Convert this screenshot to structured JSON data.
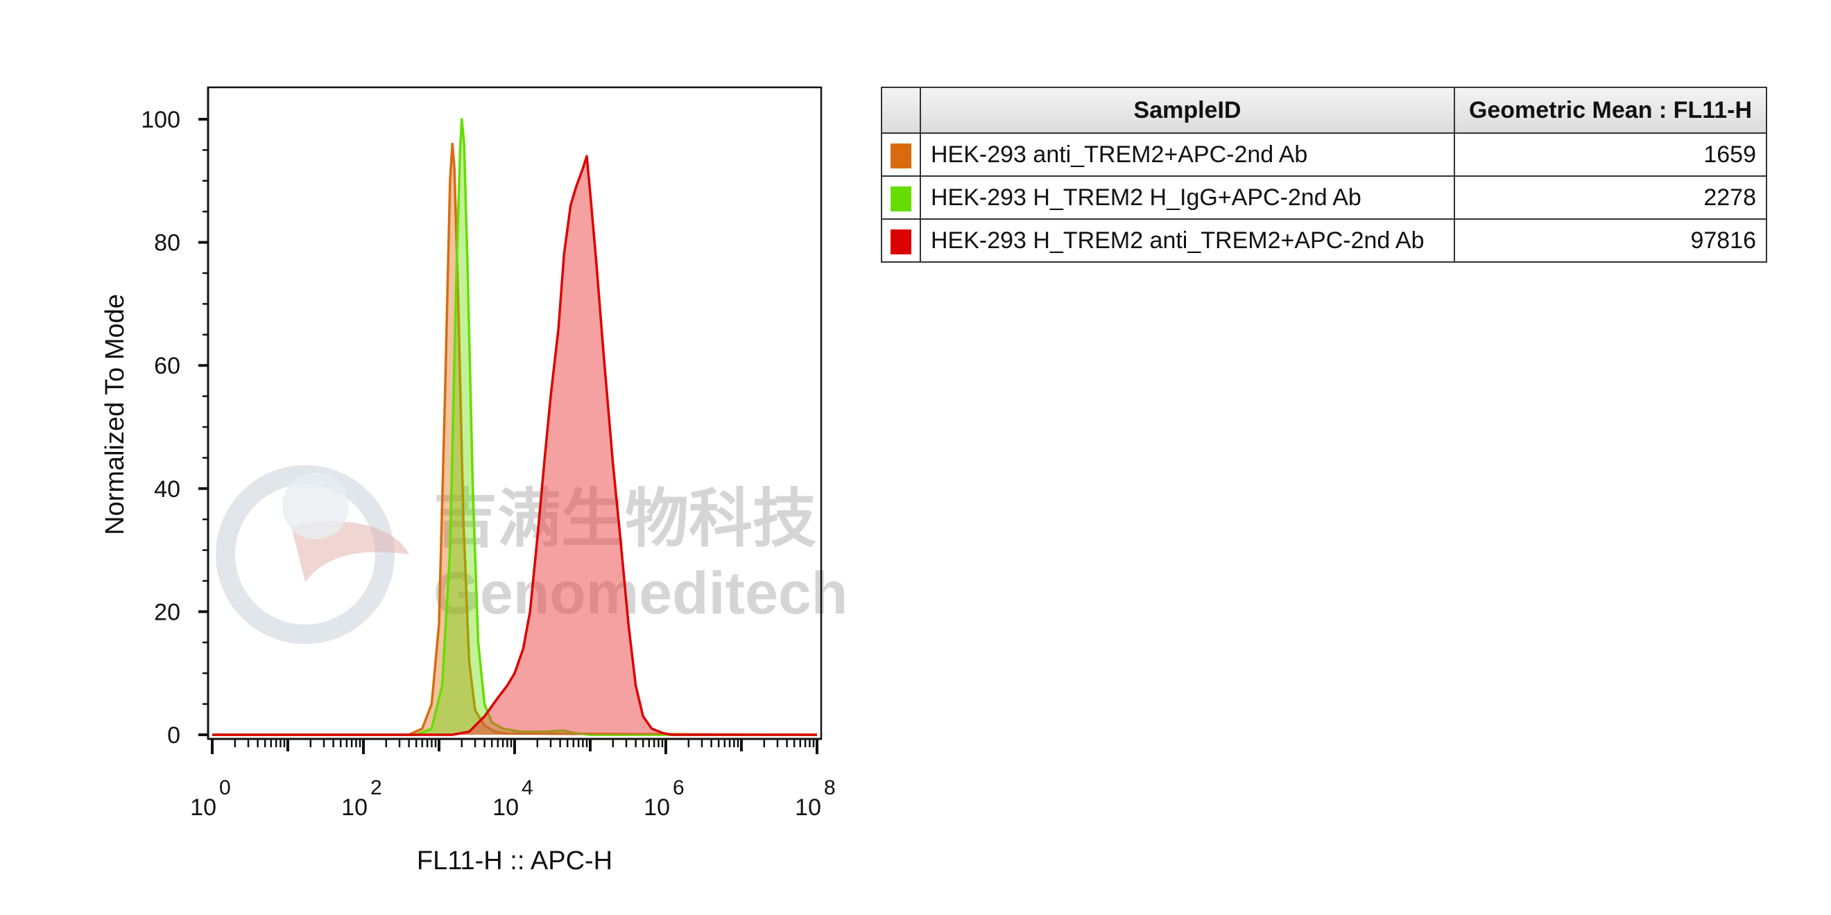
{
  "chart_data": {
    "type": "area",
    "title": "",
    "xlabel": "FL11-H :: APC-H",
    "ylabel": "Normalized To Mode",
    "x_scale": "log",
    "xlim": [
      1,
      100000000
    ],
    "ylim": [
      0,
      100
    ],
    "x_ticks": [
      {
        "base": "10",
        "exp": "0",
        "value": 1
      },
      {
        "base": "10",
        "exp": "2",
        "value": 100
      },
      {
        "base": "10",
        "exp": "4",
        "value": 10000
      },
      {
        "base": "10",
        "exp": "6",
        "value": 1000000
      },
      {
        "base": "10",
        "exp": "8",
        "value": 100000000
      }
    ],
    "y_ticks": [
      "0",
      "20",
      "40",
      "60",
      "80",
      "100"
    ],
    "grid": false,
    "series": [
      {
        "name": "HEK-293 anti_TREM2+APC-2nd Ab",
        "color": "#d96b0e",
        "fill": "#d96b0e",
        "fill_opacity": 0.4,
        "points": [
          [
            1,
            0
          ],
          [
            400,
            0
          ],
          [
            600,
            1
          ],
          [
            800,
            5
          ],
          [
            1000,
            18
          ],
          [
            1200,
            55
          ],
          [
            1400,
            90
          ],
          [
            1500,
            96
          ],
          [
            1600,
            92
          ],
          [
            1800,
            70
          ],
          [
            2100,
            35
          ],
          [
            2500,
            12
          ],
          [
            3000,
            4
          ],
          [
            4000,
            1.5
          ],
          [
            5500,
            0.5
          ],
          [
            8000,
            0.2
          ],
          [
            100000000,
            0
          ]
        ]
      },
      {
        "name": "HEK-293 H_TREM2 H_IgG+APC-2nd Ab",
        "color": "#66dd00",
        "fill": "#66dd00",
        "fill_opacity": 0.4,
        "points": [
          [
            1,
            0
          ],
          [
            500,
            0
          ],
          [
            800,
            1
          ],
          [
            1100,
            8
          ],
          [
            1400,
            30
          ],
          [
            1700,
            75
          ],
          [
            1900,
            95
          ],
          [
            2000,
            100
          ],
          [
            2150,
            96
          ],
          [
            2400,
            75
          ],
          [
            2800,
            40
          ],
          [
            3300,
            15
          ],
          [
            4000,
            5
          ],
          [
            5000,
            2
          ],
          [
            7000,
            1
          ],
          [
            12000,
            0.5
          ],
          [
            25000,
            0.5
          ],
          [
            45000,
            0.7
          ],
          [
            60000,
            0.3
          ],
          [
            100000,
            0
          ],
          [
            100000000,
            0
          ]
        ]
      },
      {
        "name": "HEK-293 H_TREM2 anti_TREM2+APC-2nd Ab",
        "color": "#dd0000",
        "fill": "#ee4444",
        "fill_opacity": 0.5,
        "points": [
          [
            1,
            0
          ],
          [
            1500,
            0
          ],
          [
            2500,
            0.5
          ],
          [
            4000,
            3
          ],
          [
            6000,
            6
          ],
          [
            8000,
            8
          ],
          [
            10000,
            10
          ],
          [
            13000,
            14
          ],
          [
            16000,
            20
          ],
          [
            20000,
            32
          ],
          [
            25000,
            45
          ],
          [
            30000,
            55
          ],
          [
            38000,
            66
          ],
          [
            45000,
            78
          ],
          [
            55000,
            86
          ],
          [
            65000,
            89
          ],
          [
            80000,
            92
          ],
          [
            90000,
            94
          ],
          [
            100000,
            88
          ],
          [
            120000,
            77
          ],
          [
            150000,
            62
          ],
          [
            200000,
            44
          ],
          [
            250000,
            32
          ],
          [
            320000,
            18
          ],
          [
            400000,
            8
          ],
          [
            500000,
            3
          ],
          [
            650000,
            1
          ],
          [
            900000,
            0.3
          ],
          [
            1200000,
            0
          ],
          [
            100000000,
            0
          ]
        ]
      }
    ]
  },
  "legend_table": {
    "headers": {
      "sample": "SampleID",
      "value": "Geometric Mean : FL11-H"
    },
    "rows": [
      {
        "color": "#d96b0e",
        "sample": "HEK-293 anti_TREM2+APC-2nd Ab",
        "value": "1659"
      },
      {
        "color": "#66dd00",
        "sample": "HEK-293 H_TREM2 H_IgG+APC-2nd Ab",
        "value": "2278"
      },
      {
        "color": "#dd0000",
        "sample": "HEK-293 H_TREM2 anti_TREM2+APC-2nd Ab",
        "value": "97816"
      }
    ]
  },
  "watermark": {
    "cn": "吉满生物科技",
    "en": "Genomeditech"
  }
}
